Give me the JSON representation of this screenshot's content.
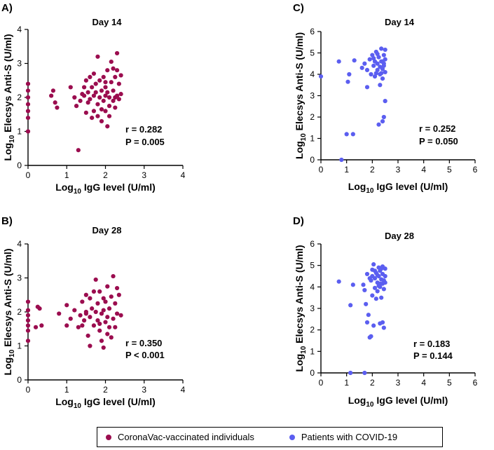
{
  "chart_data": [
    {
      "panel": "A)",
      "type": "scatter",
      "title": "Day 14",
      "series": "CoronaVac-vaccinated individuals",
      "color": "#9b0d4f",
      "xlabel": {
        "pre": "Log",
        "sub": "10",
        "post": " IgG level (U/ml)"
      },
      "ylabel": {
        "pre": "Log",
        "sub": "10",
        "post": " Elecsys Anti-S (U/ml)"
      },
      "xlim": [
        0,
        4
      ],
      "ylim": [
        0,
        4
      ],
      "xticks": [
        "0",
        "1",
        "2",
        "3",
        "4"
      ],
      "yticks": [
        "0",
        "1",
        "2",
        "3",
        "4"
      ],
      "r": "r = 0.282",
      "p": "P = 0.005",
      "points": [
        [
          0,
          2.4
        ],
        [
          0,
          2.2
        ],
        [
          0,
          2.0
        ],
        [
          0,
          1.8
        ],
        [
          0,
          1.6
        ],
        [
          0,
          1.4
        ],
        [
          0,
          1.0
        ],
        [
          0.6,
          2.05
        ],
        [
          0.65,
          2.2
        ],
        [
          0.7,
          1.85
        ],
        [
          0.75,
          1.7
        ],
        [
          1.1,
          2.3
        ],
        [
          1.2,
          2.0
        ],
        [
          1.25,
          1.75
        ],
        [
          1.3,
          0.45
        ],
        [
          1.35,
          1.9
        ],
        [
          1.4,
          2.1
        ],
        [
          1.45,
          2.3
        ],
        [
          1.5,
          1.55
        ],
        [
          1.5,
          2.5
        ],
        [
          1.55,
          2.15
        ],
        [
          1.6,
          1.95
        ],
        [
          1.6,
          2.6
        ],
        [
          1.65,
          1.4
        ],
        [
          1.65,
          2.3
        ],
        [
          1.7,
          2.05
        ],
        [
          1.7,
          1.6
        ],
        [
          1.75,
          2.4
        ],
        [
          1.75,
          2.15
        ],
        [
          1.8,
          1.8
        ],
        [
          1.8,
          3.2
        ],
        [
          1.85,
          2.0
        ],
        [
          1.85,
          2.5
        ],
        [
          1.9,
          1.3
        ],
        [
          1.9,
          2.2
        ],
        [
          1.95,
          1.9
        ],
        [
          1.95,
          2.6
        ],
        [
          2.0,
          1.6
        ],
        [
          2.0,
          2.05
        ],
        [
          2.0,
          2.3
        ],
        [
          2.05,
          2.8
        ],
        [
          2.05,
          1.15
        ],
        [
          2.1,
          2.0
        ],
        [
          2.1,
          1.75
        ],
        [
          2.15,
          2.45
        ],
        [
          2.15,
          3.05
        ],
        [
          2.2,
          1.9
        ],
        [
          2.2,
          2.2
        ],
        [
          2.25,
          2.6
        ],
        [
          2.25,
          1.7
        ],
        [
          2.3,
          2.05
        ],
        [
          2.3,
          3.3
        ],
        [
          2.35,
          2.4
        ],
        [
          2.35,
          1.95
        ],
        [
          2.4,
          2.65
        ],
        [
          2.4,
          2.1
        ],
        [
          1.55,
          1.85
        ],
        [
          1.7,
          2.7
        ],
        [
          1.9,
          1.65
        ],
        [
          2.0,
          2.45
        ],
        [
          2.1,
          1.45
        ],
        [
          2.2,
          2.85
        ],
        [
          2.25,
          2.0
        ],
        [
          1.45,
          2.05
        ],
        [
          1.8,
          1.45
        ],
        [
          2.05,
          2.15
        ],
        [
          2.3,
          2.8
        ]
      ]
    },
    {
      "panel": "B)",
      "type": "scatter",
      "title": "Day 28",
      "series": "CoronaVac-vaccinated individuals",
      "color": "#9b0d4f",
      "xlabel": {
        "pre": "Log",
        "sub": "10",
        "post": " IgG level (U/ml)"
      },
      "ylabel": {
        "pre": "Log",
        "sub": "10",
        "post": " Elecsys Anti-S (U/ml)"
      },
      "xlim": [
        0,
        4
      ],
      "ylim": [
        0,
        4
      ],
      "xticks": [
        "0",
        "1",
        "2",
        "3",
        "4"
      ],
      "yticks": [
        "0",
        "1",
        "2",
        "3",
        "4"
      ],
      "r": "r = 0.350",
      "p": "P < 0.001",
      "points": [
        [
          0,
          2.3
        ],
        [
          0,
          2.05
        ],
        [
          0,
          1.9
        ],
        [
          0,
          1.75
        ],
        [
          0,
          1.6
        ],
        [
          0,
          1.45
        ],
        [
          0,
          1.15
        ],
        [
          0.25,
          2.15
        ],
        [
          0.3,
          2.1
        ],
        [
          0.2,
          1.55
        ],
        [
          0.35,
          1.6
        ],
        [
          0.8,
          1.95
        ],
        [
          1.0,
          2.2
        ],
        [
          1.0,
          1.6
        ],
        [
          1.1,
          1.8
        ],
        [
          1.2,
          2.05
        ],
        [
          1.3,
          1.55
        ],
        [
          1.35,
          1.9
        ],
        [
          1.4,
          2.3
        ],
        [
          1.45,
          1.75
        ],
        [
          1.5,
          2.0
        ],
        [
          1.5,
          2.5
        ],
        [
          1.55,
          1.3
        ],
        [
          1.6,
          1.85
        ],
        [
          1.6,
          2.4
        ],
        [
          1.65,
          2.1
        ],
        [
          1.7,
          1.6
        ],
        [
          1.75,
          2.0
        ],
        [
          1.75,
          2.95
        ],
        [
          1.8,
          1.75
        ],
        [
          1.8,
          2.25
        ],
        [
          1.85,
          1.45
        ],
        [
          1.85,
          2.6
        ],
        [
          1.9,
          1.95
        ],
        [
          1.9,
          1.15
        ],
        [
          1.95,
          2.05
        ],
        [
          1.95,
          0.95
        ],
        [
          2.0,
          1.7
        ],
        [
          2.0,
          2.3
        ],
        [
          2.05,
          1.85
        ],
        [
          2.05,
          2.75
        ],
        [
          2.1,
          1.55
        ],
        [
          2.1,
          2.1
        ],
        [
          2.15,
          2.45
        ],
        [
          2.2,
          1.8
        ],
        [
          2.2,
          3.05
        ],
        [
          2.25,
          2.25
        ],
        [
          2.3,
          1.95
        ],
        [
          2.3,
          2.7
        ],
        [
          2.35,
          2.5
        ],
        [
          2.4,
          1.9
        ],
        [
          2.15,
          1.25
        ],
        [
          1.7,
          2.6
        ],
        [
          1.4,
          1.6
        ],
        [
          1.95,
          2.4
        ],
        [
          2.25,
          1.55
        ],
        [
          1.6,
          1.0
        ],
        [
          2.05,
          1.35
        ],
        [
          1.85,
          1.65
        ],
        [
          1.5,
          1.95
        ]
      ]
    },
    {
      "panel": "C)",
      "type": "scatter",
      "title": "Day 14",
      "series": "Patients with COVID-19",
      "color": "#5b5ef0",
      "xlabel": {
        "pre": "Log",
        "sub": "10",
        "post": " IgG level (U/ml)"
      },
      "ylabel": {
        "pre": "Log",
        "sub": "10",
        "post": " Elecsys Anti-S (U/ml)"
      },
      "xlim": [
        0,
        6
      ],
      "ylim": [
        0,
        6
      ],
      "xticks": [
        "0",
        "1",
        "2",
        "3",
        "4",
        "5",
        "6"
      ],
      "yticks": [
        "0",
        "1",
        "2",
        "3",
        "4",
        "5",
        "6"
      ],
      "r": "r = 0.252",
      "p": "P = 0.050",
      "points": [
        [
          0,
          3.9
        ],
        [
          0.8,
          0
        ],
        [
          0.7,
          4.6
        ],
        [
          1.0,
          1.2
        ],
        [
          1.1,
          4.0
        ],
        [
          1.05,
          3.65
        ],
        [
          1.25,
          1.2
        ],
        [
          1.3,
          4.65
        ],
        [
          1.6,
          4.3
        ],
        [
          1.7,
          4.5
        ],
        [
          1.8,
          3.4
        ],
        [
          1.8,
          4.2
        ],
        [
          1.9,
          4.7
        ],
        [
          1.95,
          4.0
        ],
        [
          2.0,
          4.9
        ],
        [
          2.05,
          4.4
        ],
        [
          2.1,
          3.9
        ],
        [
          2.1,
          4.6
        ],
        [
          2.15,
          5.05
        ],
        [
          2.2,
          4.2
        ],
        [
          2.2,
          4.5
        ],
        [
          2.25,
          4.8
        ],
        [
          2.25,
          1.65
        ],
        [
          2.3,
          4.0
        ],
        [
          2.3,
          4.35
        ],
        [
          2.35,
          4.6
        ],
        [
          2.35,
          5.2
        ],
        [
          2.4,
          3.8
        ],
        [
          2.4,
          4.25
        ],
        [
          2.4,
          1.8
        ],
        [
          2.45,
          4.5
        ],
        [
          2.45,
          4.9
        ],
        [
          2.5,
          4.1
        ],
        [
          2.5,
          4.7
        ],
        [
          2.5,
          5.15
        ],
        [
          2.45,
          2.0
        ],
        [
          2.5,
          2.75
        ],
        [
          2.3,
          3.5
        ],
        [
          2.15,
          4.05
        ],
        [
          2.05,
          4.75
        ],
        [
          2.35,
          4.05
        ],
        [
          2.45,
          4.4
        ],
        [
          2.2,
          4.95
        ],
        [
          2.4,
          4.6
        ]
      ]
    },
    {
      "panel": "D)",
      "type": "scatter",
      "title": "Day 28",
      "series": "Patients with COVID-19",
      "color": "#5b5ef0",
      "xlabel": {
        "pre": "Log",
        "sub": "10",
        "post": " IgG level (U/ml)"
      },
      "ylabel": {
        "pre": "Log",
        "sub": "10",
        "post": " Elecsys Anti-S (U/ml)"
      },
      "xlim": [
        0,
        6
      ],
      "ylim": [
        0,
        6
      ],
      "xticks": [
        "0",
        "1",
        "2",
        "3",
        "4",
        "5",
        "6"
      ],
      "yticks": [
        "0",
        "1",
        "2",
        "3",
        "4",
        "5",
        "6"
      ],
      "r": "r = 0.183",
      "p": "P = 0.144",
      "points": [
        [
          0.7,
          4.25
        ],
        [
          1.15,
          0
        ],
        [
          1.15,
          3.15
        ],
        [
          1.25,
          4.1
        ],
        [
          1.7,
          0
        ],
        [
          1.65,
          4.1
        ],
        [
          1.7,
          3.85
        ],
        [
          1.75,
          3.2
        ],
        [
          1.8,
          2.35
        ],
        [
          1.8,
          4.6
        ],
        [
          1.85,
          2.7
        ],
        [
          1.9,
          1.65
        ],
        [
          1.95,
          1.7
        ],
        [
          1.95,
          4.3
        ],
        [
          2.0,
          3.6
        ],
        [
          2.0,
          4.8
        ],
        [
          2.05,
          5.05
        ],
        [
          2.1,
          3.95
        ],
        [
          2.1,
          4.4
        ],
        [
          2.15,
          4.65
        ],
        [
          2.2,
          3.8
        ],
        [
          2.2,
          4.2
        ],
        [
          2.25,
          4.5
        ],
        [
          2.25,
          4.9
        ],
        [
          2.3,
          2.3
        ],
        [
          2.3,
          4.0
        ],
        [
          2.3,
          4.75
        ],
        [
          2.35,
          4.35
        ],
        [
          2.35,
          3.5
        ],
        [
          2.4,
          4.6
        ],
        [
          2.4,
          4.95
        ],
        [
          2.45,
          3.9
        ],
        [
          2.45,
          4.3
        ],
        [
          2.5,
          4.5
        ],
        [
          2.5,
          4.85
        ],
        [
          2.45,
          2.1
        ],
        [
          2.4,
          2.35
        ],
        [
          2.05,
          2.2
        ],
        [
          2.2,
          4.55
        ],
        [
          2.1,
          4.75
        ],
        [
          2.3,
          4.15
        ],
        [
          2.0,
          4.5
        ],
        [
          2.15,
          3.45
        ],
        [
          2.35,
          4.85
        ],
        [
          2.5,
          4.2
        ],
        [
          1.9,
          4.4
        ],
        [
          2.25,
          4.05
        ],
        [
          2.4,
          4.15
        ]
      ]
    }
  ],
  "legend": {
    "items": [
      {
        "label": "CoronaVac-vaccinated individuals",
        "color": "#9b0d4f"
      },
      {
        "label": "Patients with COVID-19",
        "color": "#5b5ef0"
      }
    ]
  }
}
